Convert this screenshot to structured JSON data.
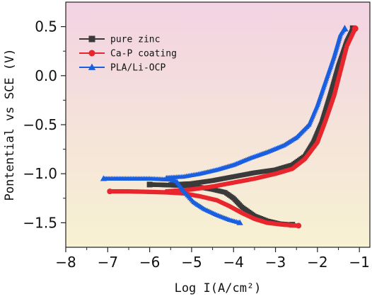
{
  "chart_data": {
    "type": "line",
    "title": "",
    "xlabel": "Log I(A/cm²)",
    "ylabel": "Pontential vs SCE (V)",
    "xlim": [
      -8,
      -0.75
    ],
    "ylim": [
      -1.75,
      0.75
    ],
    "x_ticks": [
      -8,
      -7,
      -6,
      -5,
      -4,
      -3,
      -2,
      -1
    ],
    "x_tick_labels": [
      "−8",
      "−7",
      "−6",
      "−5",
      "−4",
      "−3",
      "−2",
      "−1"
    ],
    "y_ticks": [
      0.5,
      0.0,
      -0.5,
      -1.0,
      -1.5
    ],
    "y_tick_labels": [
      "0.5",
      "0.0",
      "−0.5",
      "−1.0",
      "−1.5"
    ],
    "legend_position": "top-left",
    "background_gradient": [
      "#f3d3e3",
      "#f7f2d2"
    ],
    "series": [
      {
        "name": "pure zinc",
        "color": "#3a3a3a",
        "marker": "square",
        "cathodic": [
          [
            -2.6,
            -1.52
          ],
          [
            -2.9,
            -1.51
          ],
          [
            -3.2,
            -1.48
          ],
          [
            -3.5,
            -1.43
          ],
          [
            -3.8,
            -1.34
          ],
          [
            -4.0,
            -1.25
          ],
          [
            -4.2,
            -1.19
          ],
          [
            -4.5,
            -1.16
          ],
          [
            -4.9,
            -1.13
          ],
          [
            -5.3,
            -1.12
          ],
          [
            -5.6,
            -1.115
          ],
          [
            -6.0,
            -1.11
          ]
        ],
        "anodic": [
          [
            -5.5,
            -1.11
          ],
          [
            -5.0,
            -1.1
          ],
          [
            -4.5,
            -1.07
          ],
          [
            -4.0,
            -1.03
          ],
          [
            -3.5,
            -0.99
          ],
          [
            -3.0,
            -0.96
          ],
          [
            -2.6,
            -0.91
          ],
          [
            -2.3,
            -0.82
          ],
          [
            -2.1,
            -0.68
          ],
          [
            -1.9,
            -0.48
          ],
          [
            -1.7,
            -0.2
          ],
          [
            -1.5,
            0.1
          ],
          [
            -1.3,
            0.35
          ],
          [
            -1.15,
            0.48
          ]
        ]
      },
      {
        "name": "Ca-P coating",
        "color": "#e8262d",
        "marker": "circle",
        "cathodic": [
          [
            -2.45,
            -1.53
          ],
          [
            -2.8,
            -1.52
          ],
          [
            -3.2,
            -1.5
          ],
          [
            -3.5,
            -1.46
          ],
          [
            -3.8,
            -1.4
          ],
          [
            -4.1,
            -1.33
          ],
          [
            -4.4,
            -1.27
          ],
          [
            -4.8,
            -1.23
          ],
          [
            -5.2,
            -1.2
          ],
          [
            -5.6,
            -1.19
          ],
          [
            -6.0,
            -1.185
          ],
          [
            -6.5,
            -1.18
          ],
          [
            -6.95,
            -1.18
          ]
        ],
        "anodic": [
          [
            -5.6,
            -1.18
          ],
          [
            -5.0,
            -1.16
          ],
          [
            -4.5,
            -1.13
          ],
          [
            -4.0,
            -1.09
          ],
          [
            -3.5,
            -1.05
          ],
          [
            -3.0,
            -1.0
          ],
          [
            -2.6,
            -0.95
          ],
          [
            -2.3,
            -0.85
          ],
          [
            -2.0,
            -0.68
          ],
          [
            -1.8,
            -0.45
          ],
          [
            -1.6,
            -0.2
          ],
          [
            -1.45,
            0.05
          ],
          [
            -1.3,
            0.3
          ],
          [
            -1.1,
            0.48
          ]
        ]
      },
      {
        "name": "PLA/Li-OCP",
        "color": "#1a5fe0",
        "marker": "triangle",
        "cathodic": [
          [
            -3.85,
            -1.5
          ],
          [
            -4.1,
            -1.47
          ],
          [
            -4.4,
            -1.42
          ],
          [
            -4.7,
            -1.36
          ],
          [
            -4.95,
            -1.29
          ],
          [
            -5.1,
            -1.22
          ],
          [
            -5.25,
            -1.14
          ],
          [
            -5.35,
            -1.08
          ],
          [
            -5.5,
            -1.06
          ],
          [
            -6.0,
            -1.05
          ],
          [
            -6.5,
            -1.05
          ],
          [
            -7.1,
            -1.05
          ]
        ],
        "anodic": [
          [
            -5.6,
            -1.04
          ],
          [
            -5.2,
            -1.03
          ],
          [
            -4.8,
            -1.0
          ],
          [
            -4.4,
            -0.96
          ],
          [
            -4.0,
            -0.91
          ],
          [
            -3.6,
            -0.84
          ],
          [
            -3.2,
            -0.78
          ],
          [
            -2.8,
            -0.71
          ],
          [
            -2.5,
            -0.63
          ],
          [
            -2.2,
            -0.5
          ],
          [
            -2.0,
            -0.3
          ],
          [
            -1.8,
            -0.05
          ],
          [
            -1.6,
            0.2
          ],
          [
            -1.45,
            0.42
          ],
          [
            -1.35,
            0.48
          ]
        ]
      }
    ]
  }
}
